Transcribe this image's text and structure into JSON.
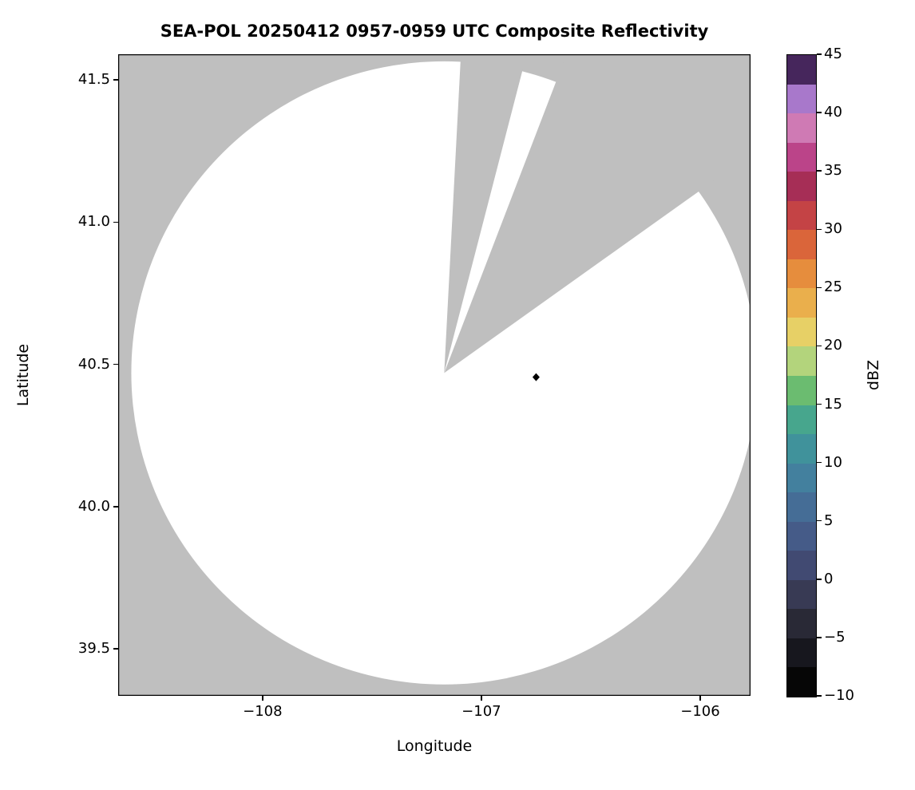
{
  "chart_data": {
    "type": "radar_composite_reflectivity_map",
    "title": "SEA-POL 20250412 0957-0959 UTC Composite Reflectivity",
    "xlabel": "Longitude",
    "ylabel": "Latitude",
    "xlim": [
      -108.66,
      -105.77
    ],
    "ylim": [
      39.335,
      41.59
    ],
    "xticks": [
      {
        "value": -108,
        "label": "−108"
      },
      {
        "value": -107,
        "label": "−107"
      },
      {
        "value": -106,
        "label": "−106"
      }
    ],
    "yticks": [
      {
        "value": 41.5,
        "label": "41.5"
      },
      {
        "value": 41.0,
        "label": "41.0"
      },
      {
        "value": 40.5,
        "label": "40.5"
      },
      {
        "value": 40.0,
        "label": "40.0"
      },
      {
        "value": 39.5,
        "label": "39.5"
      }
    ],
    "grid": false,
    "no_data_color": "#bfbfbf",
    "coverage": {
      "fill": "#ffffff",
      "center_lon": -107.17,
      "center_lat": 40.47,
      "radius_lon_deg": 1.43,
      "radius_lat_deg": 1.095,
      "blocked_sectors_azimuth_deg": [
        [
          3,
          14.5
        ],
        [
          21,
          54.5
        ]
      ]
    },
    "marker": {
      "lon": -106.75,
      "lat": 40.455,
      "shape": "diamond",
      "color": "#000000"
    },
    "colorbar": {
      "label": "dBZ",
      "min": -10,
      "max": 45,
      "tick_step": 5,
      "ticks": [
        {
          "value": 45,
          "label": "45"
        },
        {
          "value": 40,
          "label": "40"
        },
        {
          "value": 35,
          "label": "35"
        },
        {
          "value": 30,
          "label": "30"
        },
        {
          "value": 25,
          "label": "25"
        },
        {
          "value": 20,
          "label": "20"
        },
        {
          "value": 15,
          "label": "15"
        },
        {
          "value": 10,
          "label": "10"
        },
        {
          "value": 5,
          "label": "5"
        },
        {
          "value": 0,
          "label": "0"
        },
        {
          "value": -5,
          "label": "−5"
        },
        {
          "value": -10,
          "label": "−10"
        }
      ],
      "band_colors_bottom_to_top": [
        "#060606",
        "#17171e",
        "#292936",
        "#383a54",
        "#414a72",
        "#455b88",
        "#456d96",
        "#43809e",
        "#40929b",
        "#47a68d",
        "#6bbc70",
        "#b3d47c",
        "#e7d066",
        "#eaaf4c",
        "#e68d3d",
        "#da653a",
        "#c44345",
        "#a62e56",
        "#bb4489",
        "#cf7ab4",
        "#a878cb",
        "#46265c"
      ]
    }
  }
}
